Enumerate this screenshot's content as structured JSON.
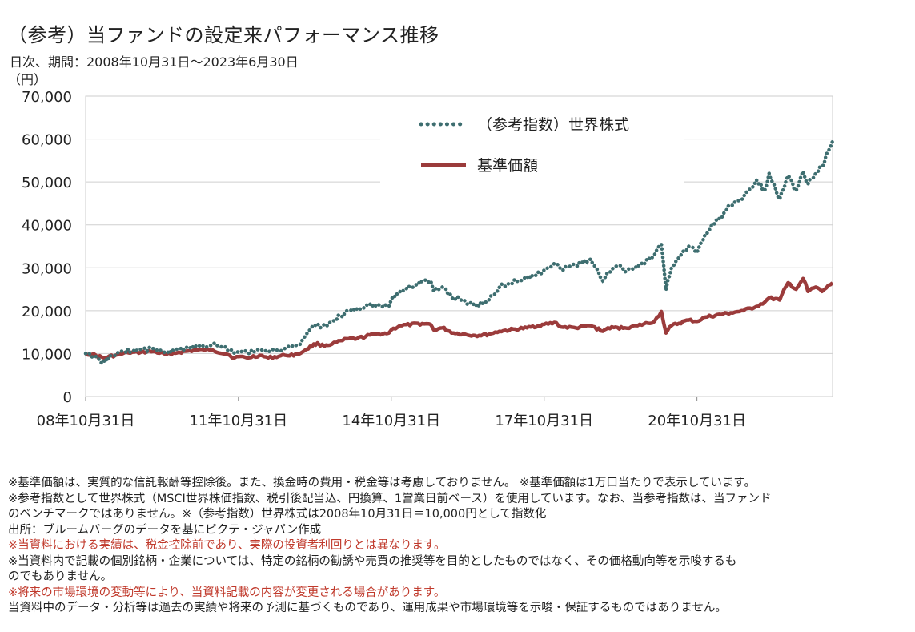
{
  "header": {
    "title": "（参考）当ファンドの設定来パフォーマンス推移",
    "subtitle": "日次、期間：2008年10月31日～2023年6月30日",
    "unit": "（円）"
  },
  "chart_data": {
    "type": "line",
    "xlabel": "",
    "ylabel": "（円）",
    "ylim": [
      0,
      70000
    ],
    "yticks": [
      "0",
      "10,000",
      "20,000",
      "30,000",
      "40,000",
      "50,000",
      "60,000",
      "70,000"
    ],
    "xlim": [
      "2008-10-31",
      "2023-06-30"
    ],
    "xticks": [
      {
        "date": "2008-10-31",
        "label": "08年10月31日"
      },
      {
        "date": "2011-10-31",
        "label": "11年10月31日"
      },
      {
        "date": "2014-10-31",
        "label": "14年10月31日"
      },
      {
        "date": "2017-10-31",
        "label": "17年10月31日"
      },
      {
        "date": "2020-10-31",
        "label": "20年10月31日"
      }
    ],
    "grid": true,
    "legend_position": "top-right",
    "series": [
      {
        "name": "（参考指数）世界株式",
        "style": "dotted",
        "color": "#3e6e70",
        "points": [
          [
            "2008-10-31",
            10000
          ],
          [
            "2008-12-15",
            9200
          ],
          [
            "2009-03-09",
            8000
          ],
          [
            "2009-05-01",
            9500
          ],
          [
            "2009-08-01",
            10500
          ],
          [
            "2009-12-01",
            11000
          ],
          [
            "2010-03-01",
            11200
          ],
          [
            "2010-05-25",
            10200
          ],
          [
            "2010-09-01",
            11000
          ],
          [
            "2010-12-31",
            11800
          ],
          [
            "2011-03-15",
            11500
          ],
          [
            "2011-04-30",
            12300
          ],
          [
            "2011-08-01",
            11500
          ],
          [
            "2011-10-03",
            10000
          ],
          [
            "2011-10-31",
            10500
          ],
          [
            "2011-12-31",
            10300
          ],
          [
            "2012-03-30",
            11000
          ],
          [
            "2012-06-01",
            10300
          ],
          [
            "2012-09-30",
            11200
          ],
          [
            "2012-11-15",
            11600
          ],
          [
            "2012-12-31",
            12000
          ],
          [
            "2013-03-01",
            14500
          ],
          [
            "2013-05-20",
            17000
          ],
          [
            "2013-06-10",
            16000
          ],
          [
            "2013-09-01",
            17500
          ],
          [
            "2013-12-31",
            20000
          ],
          [
            "2014-03-01",
            20500
          ],
          [
            "2014-06-30",
            21500
          ],
          [
            "2014-10-15",
            21000
          ],
          [
            "2014-10-31",
            22500
          ],
          [
            "2014-12-31",
            24500
          ],
          [
            "2015-03-15",
            25500
          ],
          [
            "2015-06-10",
            27000
          ],
          [
            "2015-08-10",
            27000
          ],
          [
            "2015-09-01",
            24500
          ],
          [
            "2015-11-01",
            25500
          ],
          [
            "2016-01-20",
            22500
          ],
          [
            "2016-03-01",
            23000
          ],
          [
            "2016-06-24",
            21000
          ],
          [
            "2016-09-30",
            22500
          ],
          [
            "2016-12-15",
            25500
          ],
          [
            "2017-03-01",
            26500
          ],
          [
            "2017-06-30",
            27500
          ],
          [
            "2017-10-31",
            29500
          ],
          [
            "2018-01-26",
            31000
          ],
          [
            "2018-03-01",
            29500
          ],
          [
            "2018-06-15",
            30500
          ],
          [
            "2018-10-01",
            32000
          ],
          [
            "2018-12-25",
            27000
          ],
          [
            "2019-02-01",
            29000
          ],
          [
            "2019-04-30",
            30500
          ],
          [
            "2019-06-03",
            29000
          ],
          [
            "2019-09-01",
            30000
          ],
          [
            "2019-12-31",
            33000
          ],
          [
            "2020-02-19",
            35500
          ],
          [
            "2020-03-23",
            24800
          ],
          [
            "2020-05-01",
            30000
          ],
          [
            "2020-07-01",
            32500
          ],
          [
            "2020-09-01",
            35000
          ],
          [
            "2020-10-31",
            33500
          ],
          [
            "2020-12-31",
            38000
          ],
          [
            "2021-03-01",
            40000
          ],
          [
            "2021-06-30",
            44500
          ],
          [
            "2021-09-30",
            46500
          ],
          [
            "2021-12-31",
            50500
          ],
          [
            "2022-02-28",
            48000
          ],
          [
            "2022-04-01",
            52000
          ],
          [
            "2022-06-16",
            46000
          ],
          [
            "2022-08-15",
            51500
          ],
          [
            "2022-10-12",
            48000
          ],
          [
            "2022-12-01",
            52500
          ],
          [
            "2023-01-05",
            49500
          ],
          [
            "2023-03-01",
            52000
          ],
          [
            "2023-04-15",
            53500
          ],
          [
            "2023-06-30",
            59500
          ]
        ]
      },
      {
        "name": "基準価額",
        "style": "solid",
        "color": "#9b3b3b",
        "points": [
          [
            "2008-10-31",
            10000
          ],
          [
            "2008-12-15",
            9800
          ],
          [
            "2009-03-09",
            9000
          ],
          [
            "2009-06-01",
            9600
          ],
          [
            "2009-09-01",
            10200
          ],
          [
            "2009-12-01",
            10300
          ],
          [
            "2010-03-01",
            10500
          ],
          [
            "2010-05-25",
            9800
          ],
          [
            "2010-09-01",
            10300
          ],
          [
            "2010-12-31",
            10800
          ],
          [
            "2011-04-30",
            10800
          ],
          [
            "2011-08-15",
            9800
          ],
          [
            "2011-10-03",
            9000
          ],
          [
            "2011-10-31",
            9300
          ],
          [
            "2011-12-31",
            9000
          ],
          [
            "2012-04-01",
            9600
          ],
          [
            "2012-06-01",
            9000
          ],
          [
            "2012-09-30",
            9600
          ],
          [
            "2012-12-31",
            9800
          ],
          [
            "2013-03-01",
            11000
          ],
          [
            "2013-05-20",
            12500
          ],
          [
            "2013-06-10",
            11800
          ],
          [
            "2013-09-01",
            12200
          ],
          [
            "2013-12-31",
            13500
          ],
          [
            "2014-03-01",
            13500
          ],
          [
            "2014-06-30",
            14500
          ],
          [
            "2014-10-15",
            14800
          ],
          [
            "2014-10-31",
            15500
          ],
          [
            "2014-12-31",
            16500
          ],
          [
            "2015-06-10",
            17000
          ],
          [
            "2015-08-10",
            16800
          ],
          [
            "2015-09-01",
            15500
          ],
          [
            "2015-11-01",
            16000
          ],
          [
            "2016-01-20",
            14800
          ],
          [
            "2016-06-24",
            14200
          ],
          [
            "2016-09-30",
            14500
          ],
          [
            "2016-12-15",
            15200
          ],
          [
            "2017-06-30",
            16000
          ],
          [
            "2017-10-31",
            16800
          ],
          [
            "2018-01-26",
            17200
          ],
          [
            "2018-03-01",
            16200
          ],
          [
            "2018-06-15",
            16000
          ],
          [
            "2018-10-01",
            16500
          ],
          [
            "2018-12-25",
            15200
          ],
          [
            "2019-02-01",
            16000
          ],
          [
            "2019-06-03",
            16000
          ],
          [
            "2019-09-01",
            16500
          ],
          [
            "2019-12-31",
            17500
          ],
          [
            "2020-02-19",
            19800
          ],
          [
            "2020-03-23",
            14800
          ],
          [
            "2020-05-01",
            16500
          ],
          [
            "2020-09-01",
            17800
          ],
          [
            "2020-10-31",
            17500
          ],
          [
            "2020-12-31",
            18500
          ],
          [
            "2021-06-30",
            19500
          ],
          [
            "2021-09-30",
            20000
          ],
          [
            "2021-12-31",
            21000
          ],
          [
            "2022-03-01",
            22000
          ],
          [
            "2022-04-01",
            23000
          ],
          [
            "2022-06-16",
            22500
          ],
          [
            "2022-08-15",
            26500
          ],
          [
            "2022-10-12",
            25000
          ],
          [
            "2022-12-01",
            27500
          ],
          [
            "2023-01-05",
            24500
          ],
          [
            "2023-03-01",
            25500
          ],
          [
            "2023-04-15",
            24500
          ],
          [
            "2023-06-30",
            26500
          ]
        ]
      }
    ]
  },
  "notes": [
    {
      "text": "※基準価額は、実質的な信託報酬等控除後。また、換金時の費用・税金等は考慮しておりません。 ※基準価額は1万口当たりで表示しています。",
      "red": false
    },
    {
      "text": "※参考指数として世界株式（MSCI世界株価指数、税引後配当込、円換算、1営業日前ベース）を使用しています。なお、当参考指数は、当ファンド",
      "red": false
    },
    {
      "text": "のベンチマークではありません。※（参考指数）世界株式は2008年10月31日＝10,000円として指数化",
      "red": false
    },
    {
      "text": "出所：ブルームバーグのデータを基にピクテ・ジャパン作成",
      "red": false
    },
    {
      "text": "※当資料における実績は、税金控除前であり、実際の投資者利回りとは異なります。",
      "red": true
    },
    {
      "text": "※当資料内で記載の個別銘柄・企業については、特定の銘柄の勧誘や売買の推奨等を目的としたものではなく、その価格動向等を示唆するも",
      "red": false
    },
    {
      "text": "のでもありません。",
      "red": false
    },
    {
      "text": "※将来の市場環境の変動等により、当資料記載の内容が変更される場合があります。",
      "red": true
    },
    {
      "text": "当資料中のデータ・分析等は過去の実績や将来の予測に基づくものであり、運用成果や市場環境等を示唆・保証するものではありません。",
      "red": false
    }
  ]
}
